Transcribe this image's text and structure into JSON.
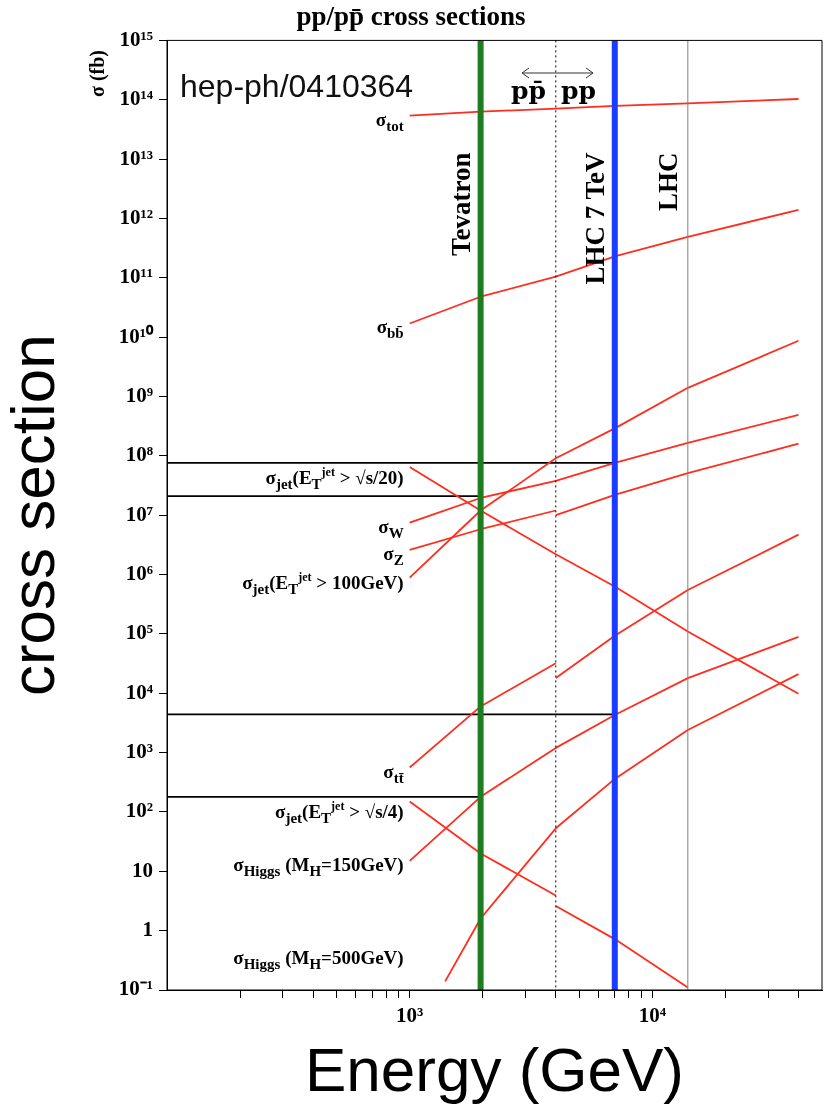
{
  "chart_data": {
    "type": "line",
    "title": "pp/pp̄ cross sections",
    "xlabel": "Energy (GeV)",
    "ylabel": "cross section",
    "annotations": [
      "hep-ph/0410364",
      "σ (fb)",
      "pp̄",
      "pp"
    ],
    "log": "xy",
    "xlim": [
      100,
      50000
    ],
    "ylim": [
      0.1,
      1000000000000000.0
    ],
    "xticks": [
      {
        "value": 200,
        "label": null
      },
      {
        "value": 300,
        "label": null
      },
      {
        "value": 400,
        "label": null
      },
      {
        "value": 500,
        "label": null
      },
      {
        "value": 600,
        "label": null
      },
      {
        "value": 700,
        "label": null
      },
      {
        "value": 800,
        "label": null
      },
      {
        "value": 900,
        "label": null
      },
      {
        "value": 1000,
        "label": "10³"
      },
      {
        "value": 2000,
        "label": null
      },
      {
        "value": 3000,
        "label": null
      },
      {
        "value": 4000,
        "label": null
      },
      {
        "value": 5000,
        "label": null
      },
      {
        "value": 6000,
        "label": null
      },
      {
        "value": 7000,
        "label": null
      },
      {
        "value": 8000,
        "label": null
      },
      {
        "value": 9000,
        "label": null
      },
      {
        "value": 10000,
        "label": "10⁴"
      },
      {
        "value": 20000,
        "label": null
      },
      {
        "value": 30000,
        "label": null
      },
      {
        "value": 40000,
        "label": null
      }
    ],
    "yticks": [
      {
        "value": 0.1,
        "label": "10⁻¹"
      },
      1,
      10,
      {
        "value": 100,
        "label": "10²"
      },
      {
        "value": 1000,
        "label": "10³"
      },
      {
        "value": 10000,
        "label": "10⁴"
      },
      {
        "value": 100000,
        "label": "10⁵"
      },
      {
        "value": 1000000,
        "label": "10⁶"
      },
      {
        "value": 10000000,
        "label": "10⁷"
      },
      {
        "value": 100000000,
        "label": "10⁸"
      },
      {
        "value": 1000000000,
        "label": "10⁹"
      },
      {
        "value": 10000000000,
        "label": "10¹⁰"
      },
      {
        "value": 100000000000,
        "label": "10¹¹"
      },
      {
        "value": 1000000000000,
        "label": "10¹²"
      },
      {
        "value": 10000000000000,
        "label": "10¹³"
      },
      {
        "value": 100000000000000,
        "label": "10¹⁴"
      },
      {
        "value": 1000000000000000,
        "label": "10¹⁵"
      }
    ],
    "grid": false,
    "legend": false,
    "marker": "none",
    "line_style": "solid",
    "ref_lines": [
      {
        "axis": "x",
        "value": 1960,
        "label": "Tevatron",
        "color": "#1e7d1e"
      },
      {
        "axis": "x",
        "value": 4000,
        "color": "#000000",
        "line_style": "dotted"
      },
      {
        "axis": "x",
        "value": 7000,
        "label": "LHC 7 TeV",
        "color": "#1a3cff"
      },
      {
        "axis": "x",
        "value": 14000,
        "label": "LHC",
        "color": "#808080"
      }
    ],
    "series": [
      {
        "name": "σ$_{tot}$",
        "color": "#ff2d1e",
        "x": [
          1000,
          1960,
          4000,
          7000,
          14000,
          40000
        ],
        "values": [
          54000000000000.0,
          63000000000000.0,
          71000000000000.0,
          79000000000000.0,
          87000000000000.0,
          103000000000000.0
        ]
      },
      {
        "name": "σ$_{bb̄}$",
        "color": "#ff2d1e",
        "x": [
          1000,
          1960,
          4000,
          7000,
          14000,
          40000
        ],
        "values": [
          17000000000.0,
          48000000000.0,
          105000000000.0,
          230000000000.0,
          490000000000.0,
          1400000000000.0
        ]
      },
      {
        "name": "σ$_{jet}$(E$_{T}$$^{jet}$ > √s/20)",
        "color": "#ff2d1e",
        "x": [
          1000,
          1960,
          4000,
          7000,
          14000,
          40000
        ],
        "values": [
          65000000.0,
          12000000.0,
          2200000.0,
          630000.0,
          110000.0,
          9800.0
        ]
      },
      {
        "name": "σ$_{W}$",
        "color": "#ff2d1e",
        "x": [
          1000,
          1960,
          4000,
          7000,
          14000,
          40000
        ],
        "values": [
          7500000.0,
          19500000.0,
          38000000.0,
          76000000.0,
          166000000.0,
          490000000.0
        ]
      },
      {
        "name": "σ$_{Z}$",
        "color": "#ff2d1e",
        "x": [
          1000,
          1960,
          4000
        ],
        "values": [
          2600000.0,
          5800000.0,
          12000000.0
        ]
      },
      {
        "color": "#ff2d1e",
        "x": [
          4000,
          7000,
          14000,
          40000
        ],
        "values": [
          10000000.0,
          22000000.0,
          51000000.0,
          160000000.0
        ]
      },
      {
        "name": "σ$_{jet}$(E$_{T}$$^{jet}$ > 100GeV)",
        "color": "#ff2d1e",
        "x": [
          1000,
          1960,
          4000,
          7000,
          14000,
          40000
        ],
        "values": [
          890000.0,
          12000000.0,
          91000000.0,
          290000000.0,
          1400000000.0,
          8700000000.0
        ]
      },
      {
        "name": "σ$_{tt̄}$",
        "color": "#ff2d1e",
        "x": [
          1000,
          1960,
          4000
        ],
        "values": [
          560,
          6000,
          32000.0
        ]
      },
      {
        "color": "#ff2d1e",
        "x": [
          4000,
          7000,
          14000,
          40000
        ],
        "values": [
          18000.0,
          93000.0,
          550000.0,
          4700000.0
        ]
      },
      {
        "name": "σ$_{jet}$(E$_{T}$$^{jet}$ > √s/4)",
        "color": "#ff2d1e",
        "x": [
          1000,
          1960,
          4000
        ],
        "values": [
          150,
          20,
          3.9
        ]
      },
      {
        "color": "#ff2d1e",
        "x": [
          4000,
          7000,
          14000
        ],
        "values": [
          2.6,
          0.72,
          0.11
        ]
      },
      {
        "name": "σ$_{Higgs}$ (M$_{H}$=150GeV)",
        "color": "#ff2d1e",
        "x": [
          1000,
          1960,
          4000,
          7000,
          14000,
          40000
        ],
        "values": [
          15,
          180,
          1200,
          4300,
          18000.0,
          89000.0
        ]
      },
      {
        "name": "σ$_{Higgs}$ (M$_{H}$=500GeV)",
        "color": "#ff2d1e",
        "x": [
          1400,
          1960,
          4000,
          7000,
          14000,
          40000
        ],
        "values": [
          0.14,
          1.6,
          53,
          360,
          2400,
          21000.0
        ]
      },
      {
        "color": "#000000",
        "x": [
          100,
          7000
        ],
        "values": [
          76000000.0,
          76000000.0
        ]
      },
      {
        "color": "#000000",
        "x": [
          100,
          1960
        ],
        "values": [
          21000000.0,
          21000000.0
        ]
      },
      {
        "color": "#000000",
        "x": [
          100,
          7000
        ],
        "values": [
          4400,
          4400
        ]
      },
      {
        "color": "#000000",
        "x": [
          100,
          1960
        ],
        "values": [
          180,
          180
        ]
      }
    ]
  }
}
